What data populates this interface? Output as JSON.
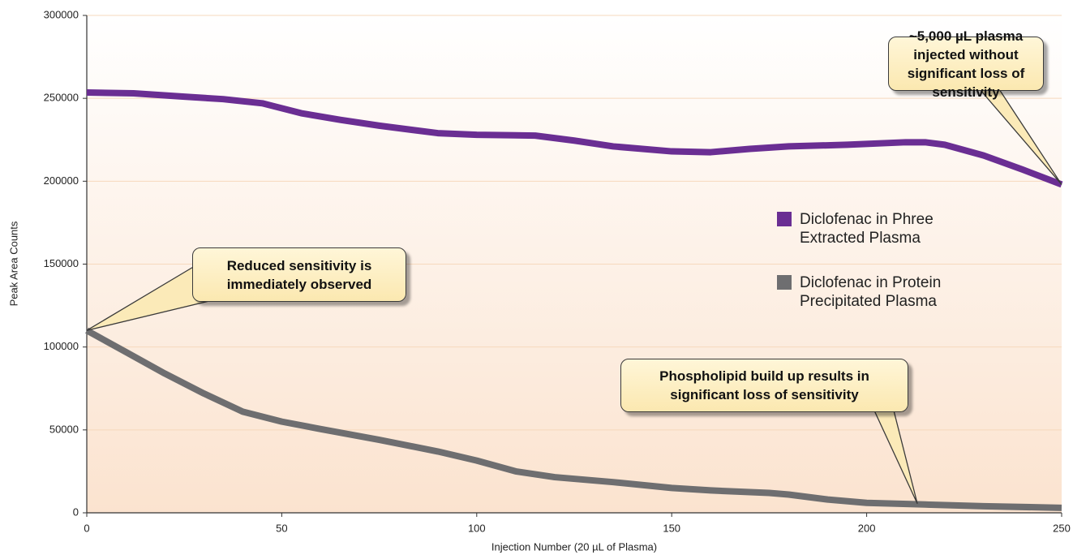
{
  "chart_data": {
    "type": "line",
    "xlabel": "Injection Number (20 µL of Plasma)",
    "ylabel": "Peak Area Counts",
    "xlim": [
      0,
      250
    ],
    "xticks": [
      0,
      50,
      100,
      150,
      200,
      250
    ],
    "ylim": [
      0,
      300000
    ],
    "yticks": [
      0,
      50000,
      100000,
      150000,
      200000,
      250000,
      300000
    ],
    "grid": true,
    "series": [
      {
        "name": "Diclofenac in Phree Extracted Plasma",
        "color": "#6a2e93",
        "x": [
          0,
          12,
          25,
          35,
          45,
          55,
          65,
          75,
          90,
          100,
          115,
          125,
          135,
          150,
          160,
          170,
          180,
          195,
          210,
          215,
          220,
          230,
          240,
          250
        ],
        "values": [
          253500,
          253000,
          251000,
          249500,
          247000,
          241000,
          237000,
          233500,
          229000,
          228000,
          227500,
          224500,
          221000,
          218000,
          217500,
          219500,
          221000,
          222000,
          223500,
          223500,
          222000,
          215500,
          207000,
          198000
        ]
      },
      {
        "name": "Diclofenac in Protein Precipitated Plasma",
        "color": "#6e6e70",
        "x": [
          0,
          10,
          20,
          30,
          40,
          50,
          60,
          75,
          90,
          100,
          110,
          120,
          135,
          150,
          160,
          175,
          180,
          190,
          200,
          215,
          230,
          250
        ],
        "values": [
          110000,
          97000,
          84000,
          72000,
          61000,
          55000,
          50500,
          44000,
          37000,
          31500,
          25000,
          21500,
          18500,
          15000,
          13500,
          12000,
          11000,
          8000,
          6000,
          5000,
          4000,
          3000
        ]
      }
    ],
    "annotations": [
      {
        "text": "~5,000 µL plasma injected without significant loss of sensitivity",
        "x": 250,
        "y": 198000
      },
      {
        "text": "Reduced sensitivity is immediately observed",
        "x": 0,
        "y": 110000
      },
      {
        "text": "Phospholipid build up results in significant loss of sensitivity",
        "x": 213,
        "y": 5500
      }
    ]
  }
}
